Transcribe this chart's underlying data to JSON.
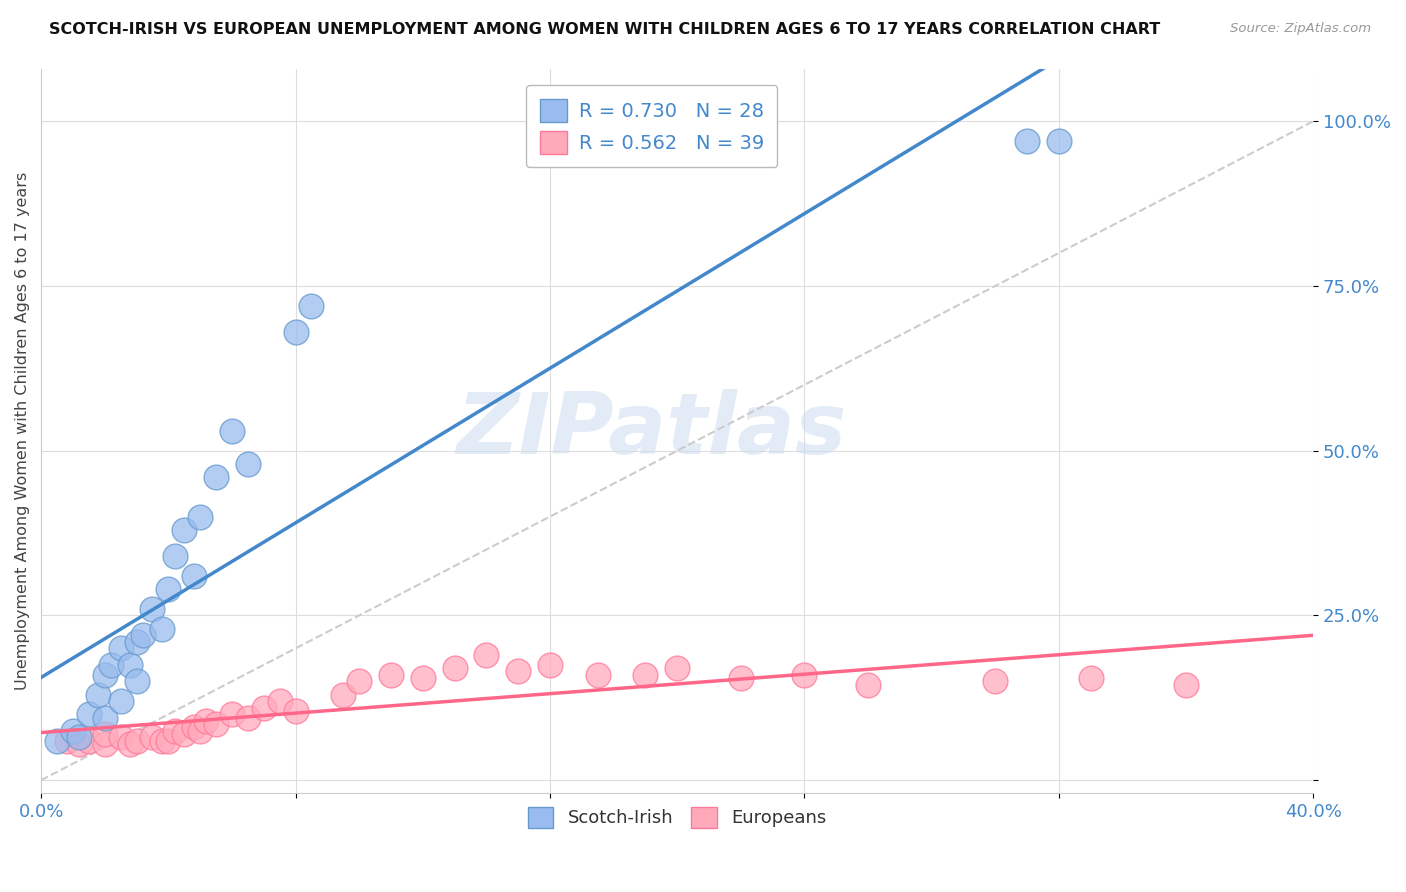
{
  "title": "SCOTCH-IRISH VS EUROPEAN UNEMPLOYMENT AMONG WOMEN WITH CHILDREN AGES 6 TO 17 YEARS CORRELATION CHART",
  "source": "Source: ZipAtlas.com",
  "ylabel": "Unemployment Among Women with Children Ages 6 to 17 years",
  "xlim": [
    0,
    0.4
  ],
  "ylim": [
    -0.02,
    1.08
  ],
  "y_ticks": [
    0.0,
    0.25,
    0.5,
    0.75,
    1.0
  ],
  "y_tick_labels": [
    "",
    "25.0%",
    "50.0%",
    "75.0%",
    "100.0%"
  ],
  "x_ticks": [
    0.0,
    0.08,
    0.16,
    0.24,
    0.32,
    0.4
  ],
  "x_tick_labels": [
    "0.0%",
    "",
    "",
    "",
    "",
    "40.0%"
  ],
  "legend_label_1": "Scotch-Irish",
  "legend_label_2": "Europeans",
  "R1": 0.73,
  "N1": 28,
  "R2": 0.562,
  "N2": 39,
  "blue_scatter_color": "#99BBEE",
  "pink_scatter_color": "#FFAABB",
  "blue_edge_color": "#6699CC",
  "pink_edge_color": "#FF7799",
  "blue_line_color": "#4488CC",
  "pink_line_color": "#FF6688",
  "diagonal_color": "#CCCCCC",
  "background_color": "#FFFFFF",
  "grid_color": "#DDDDDD",
  "scotch_irish_x": [
    0.005,
    0.01,
    0.012,
    0.015,
    0.018,
    0.02,
    0.02,
    0.022,
    0.025,
    0.025,
    0.028,
    0.03,
    0.03,
    0.032,
    0.035,
    0.038,
    0.04,
    0.042,
    0.045,
    0.048,
    0.05,
    0.055,
    0.06,
    0.065,
    0.08,
    0.085,
    0.31,
    0.32
  ],
  "scotch_irish_y": [
    0.06,
    0.075,
    0.065,
    0.1,
    0.13,
    0.095,
    0.16,
    0.175,
    0.12,
    0.2,
    0.175,
    0.15,
    0.21,
    0.22,
    0.26,
    0.23,
    0.29,
    0.34,
    0.38,
    0.31,
    0.4,
    0.46,
    0.53,
    0.48,
    0.68,
    0.72,
    0.97,
    0.97
  ],
  "europeans_x": [
    0.008,
    0.012,
    0.015,
    0.02,
    0.02,
    0.025,
    0.028,
    0.03,
    0.035,
    0.038,
    0.04,
    0.042,
    0.045,
    0.048,
    0.05,
    0.052,
    0.055,
    0.06,
    0.065,
    0.07,
    0.075,
    0.08,
    0.095,
    0.1,
    0.11,
    0.12,
    0.13,
    0.14,
    0.15,
    0.16,
    0.175,
    0.19,
    0.2,
    0.22,
    0.24,
    0.26,
    0.3,
    0.33,
    0.36
  ],
  "europeans_y": [
    0.06,
    0.055,
    0.06,
    0.055,
    0.07,
    0.065,
    0.055,
    0.06,
    0.065,
    0.06,
    0.06,
    0.075,
    0.07,
    0.08,
    0.075,
    0.09,
    0.085,
    0.1,
    0.095,
    0.11,
    0.12,
    0.105,
    0.13,
    0.15,
    0.16,
    0.155,
    0.17,
    0.19,
    0.165,
    0.175,
    0.16,
    0.16,
    0.17,
    0.155,
    0.16,
    0.145,
    0.15,
    0.155,
    0.145
  ],
  "watermark_text": "ZIPatlas",
  "watermark_color": "#CCDDF0",
  "watermark_alpha": 0.55
}
